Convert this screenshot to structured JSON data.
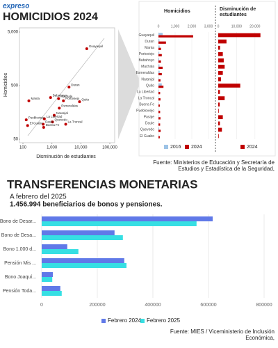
{
  "brand": "expreso",
  "chart_data": [
    {
      "type": "scatter",
      "title": "HOMICIDIOS 2024",
      "x_label": "Disminución de estudiantes",
      "y_label": "Homicidios",
      "log_x": true,
      "log_y": true,
      "color": "#c00000",
      "categories": [
        "Guayaquil",
        "Duran",
        "Manta",
        "Babahoyo",
        "Machala",
        "Portoviejo",
        "Quito",
        "Esmeraldas",
        "Naranjal",
        "La Libertad",
        "Quevedo",
        "La Troncal",
        "Puebloviejo",
        "Daule",
        "Buena Fe",
        "El Guabo"
      ],
      "x": [
        16000,
        3900,
        160,
        900,
        1700,
        2500,
        9000,
        1800,
        1200,
        550,
        1050,
        3000,
        130,
        500,
        520,
        145
      ],
      "values": [
        2440,
        470,
        260,
        300,
        285,
        260,
        250,
        190,
        140,
        120,
        105,
        95,
        115,
        95,
        83,
        90
      ],
      "xlim": [
        100,
        100000
      ],
      "ylim": [
        50,
        5000
      ],
      "xticks": [
        100,
        {
          "value": 1000,
          "label": "1,000"
        },
        {
          "value": 10000,
          "label": "10,000"
        },
        {
          "value": 100000,
          "label": "100,000"
        }
      ],
      "yticks": [
        50,
        500,
        {
          "value": 5000,
          "label": "5,000"
        }
      ],
      "source": "Fuente: Ministerios de Educación y Secretaría de Estudios y Estadística de la Seguridad,"
    },
    {
      "type": "bar",
      "orientation": "horizontal",
      "title": "Homicidios",
      "categories": [
        "Guayaquil",
        "Duran",
        "Manta",
        "Portoviejo",
        "Babahoyo",
        "Machala",
        "Esmeraldas",
        "Naranjal",
        "Quito",
        "La Libertad",
        "La Troncal",
        "Buena Fe",
        "Puebloviejo",
        "Pasaje",
        "Daule",
        "Quevedo",
        "El Guabo"
      ],
      "series": [
        {
          "name": "2016",
          "color": "#9dc3e6",
          "values": [
            250,
            60,
            70,
            50,
            40,
            60,
            70,
            20,
            200,
            30,
            20,
            20,
            10,
            20,
            20,
            40,
            10
          ]
        },
        {
          "name": "2024",
          "color": "#c00000",
          "values": [
            2080,
            450,
            150,
            200,
            150,
            250,
            200,
            120,
            300,
            100,
            120,
            80,
            100,
            120,
            100,
            130,
            80
          ]
        }
      ],
      "xlim": [
        0,
        3000
      ],
      "xticks": [
        0,
        {
          "value": 1000,
          "label": "1,000"
        },
        {
          "value": 2000,
          "label": "2,000"
        },
        {
          "value": 3000,
          "label": "3,000"
        }
      ]
    },
    {
      "type": "bar",
      "orientation": "horizontal",
      "title": "Disminución de estudiantes",
      "series": [
        {
          "name": "2024",
          "color": "#c00000",
          "values": [
            23000,
            4500,
            1000,
            2500,
            3000,
            3500,
            2500,
            1500,
            12000,
            900,
            3500,
            800,
            300,
            2500,
            900,
            2000,
            300
          ]
        }
      ],
      "xlim": [
        0,
        25000
      ],
      "xticks": [
        0,
        {
          "value": 10000,
          "label": "10,000"
        },
        {
          "value": 20000,
          "label": "20,000"
        }
      ]
    },
    {
      "type": "bar",
      "orientation": "horizontal",
      "title": "TRANSFERENCIAS MONETARIAS",
      "subtitle": "A febrero del 2025",
      "annotation": "1.456.994 beneficiarios de bonos y pensiones.",
      "categories": [
        "Bono de Desar...",
        "Bono de Desa...",
        "Bono 1.000 d...",
        "Pensión Mis ...",
        "Bono Joaquí...",
        "Pensión Toda..."
      ],
      "series": [
        {
          "name": "Febrero 2024",
          "color": "#6079e8",
          "values": [
            615000,
            262000,
            92000,
            297000,
            40000,
            67000
          ]
        },
        {
          "name": "Febrero 2025",
          "color": "#36dfe3",
          "values": [
            557000,
            292000,
            132000,
            305000,
            38000,
            72000
          ]
        }
      ],
      "xlim": [
        0,
        800000
      ],
      "xticks": [
        0,
        200000,
        400000,
        600000,
        800000
      ],
      "grid": true,
      "source": "Fuente: MIES / Viceministerio de Inclusión Económica,"
    }
  ]
}
